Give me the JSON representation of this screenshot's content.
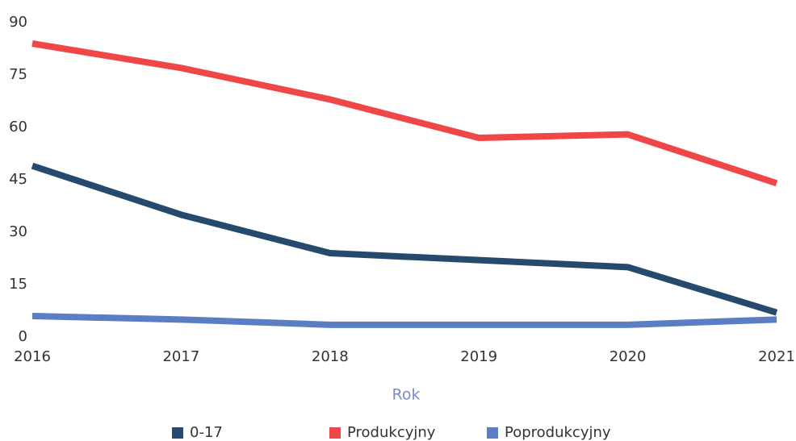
{
  "chart_data": {
    "type": "line",
    "x": [
      2016,
      2017,
      2018,
      2019,
      2020,
      2021
    ],
    "xlim": [
      2016,
      2021
    ],
    "xticks": [
      2016,
      2017,
      2018,
      2019,
      2020,
      2021
    ],
    "ylim": [
      0,
      90
    ],
    "yticks": [
      0,
      15,
      30,
      45,
      60,
      75,
      90
    ],
    "x_label": "Rok",
    "grid": false,
    "legend": "bottom",
    "series": [
      {
        "name": "0-17",
        "color": "#264a6e",
        "values": [
          49,
          35,
          24,
          22,
          20,
          7
        ]
      },
      {
        "name": "Produkcyjny",
        "color": "#ef4747",
        "values": [
          84,
          77,
          68,
          57,
          58,
          44
        ]
      },
      {
        "name": "Poprodukcyjny",
        "color": "#5b7dc4",
        "values": [
          6,
          5,
          3.5,
          3.5,
          3.5,
          5
        ]
      }
    ]
  }
}
